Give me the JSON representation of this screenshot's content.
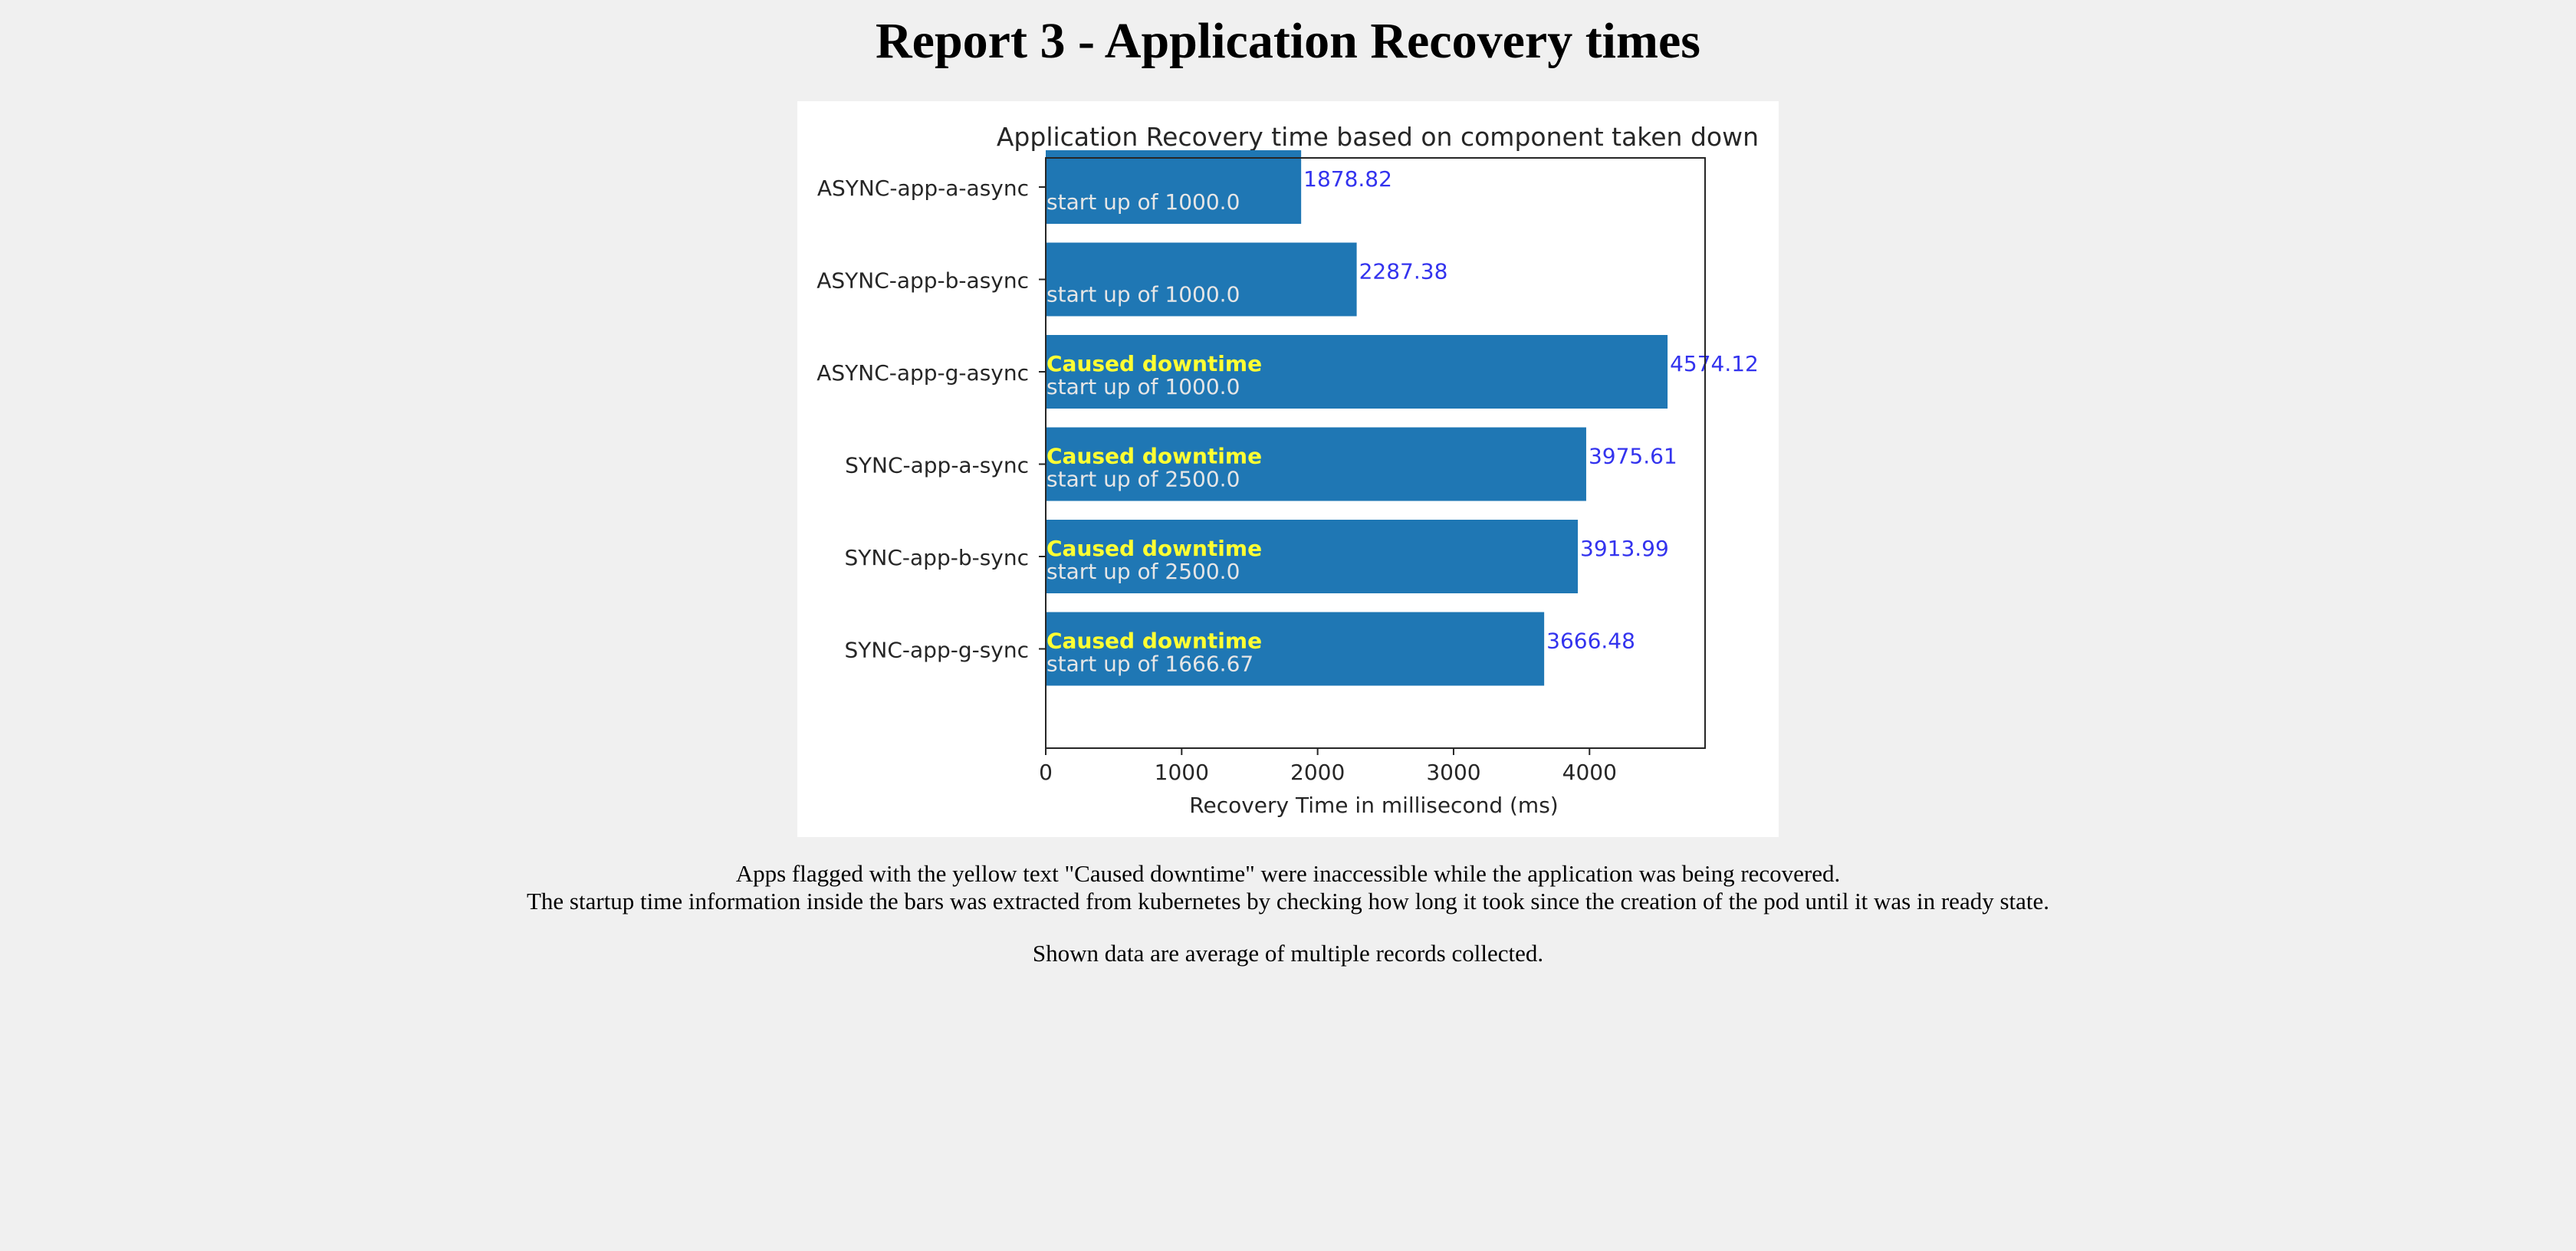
{
  "page": {
    "title": "Report 3 - Application Recovery times"
  },
  "notes": {
    "line1": "Apps flagged with the yellow text \"Caused downtime\" were inaccessible while the application was being recovered.",
    "line2": "The startup time information inside the bars was extracted from kubernetes by checking how long it took since the creation of the pod until it was in ready state.",
    "line3": "Shown data are average of multiple records collected."
  },
  "chart_data": {
    "type": "bar",
    "orientation": "horizontal",
    "title": "Application Recovery time based on component taken down",
    "xlabel": "Recovery Time in millisecond (ms)",
    "ylabel": "",
    "xlim": [
      0,
      4850
    ],
    "xticks": [
      0,
      1000,
      2000,
      3000,
      4000
    ],
    "grid": false,
    "categories": [
      "ASYNC-app-a-async",
      "ASYNC-app-b-async",
      "ASYNC-app-g-async",
      "SYNC-app-a-sync",
      "SYNC-app-b-sync",
      "SYNC-app-g-sync"
    ],
    "values": [
      1878.82,
      2287.38,
      4574.12,
      3975.61,
      3913.99,
      3666.48
    ],
    "value_labels": [
      "1878.82",
      "2287.38",
      "4574.12",
      "3975.61",
      "3913.99",
      "3666.48"
    ],
    "startup_labels": [
      "start up of 1000.0",
      "start up of 1000.0",
      "start up of 1000.0",
      "start up of 2500.0",
      "start up of 2500.0",
      "start up of 1666.67"
    ],
    "caused_downtime": [
      false,
      false,
      true,
      true,
      true,
      true
    ],
    "downtime_label": "Caused downtime",
    "colors": {
      "bar": "#1f77b4",
      "value_label": "#3333ee",
      "downtime_label": "#ffff33",
      "startup_label": "#e6e6e6",
      "text": "#262626"
    }
  }
}
